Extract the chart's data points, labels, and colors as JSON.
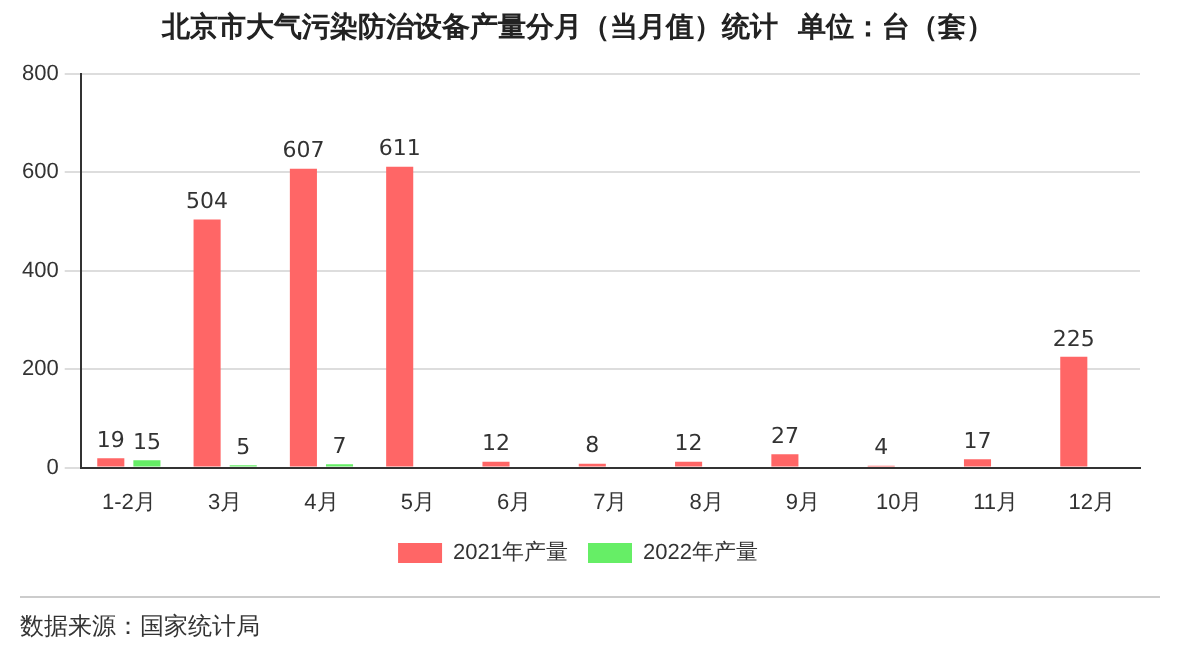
{
  "chart_data": {
    "type": "bar",
    "title": "北京市大气污染防治设备产量分月（当月值）统计  单位：台（套）",
    "categories": [
      "1-2月",
      "3月",
      "4月",
      "5月",
      "6月",
      "7月",
      "8月",
      "9月",
      "10月",
      "11月",
      "12月"
    ],
    "series": [
      {
        "name": "2021年产量",
        "color": "#ff6666",
        "values": [
          19,
          504,
          607,
          611,
          12,
          8,
          12,
          27,
          4,
          17,
          225
        ]
      },
      {
        "name": "2022年产量",
        "color": "#66ee66",
        "values": [
          15,
          5,
          7,
          null,
          null,
          null,
          null,
          null,
          null,
          null,
          null
        ]
      }
    ],
    "ylim": [
      0,
      800
    ],
    "yticks": [
      0,
      200,
      400,
      600,
      800
    ],
    "grid": "y",
    "legend": "bottom",
    "data_labels": true,
    "annotations": [
      "数据来源：国家统计局"
    ]
  }
}
